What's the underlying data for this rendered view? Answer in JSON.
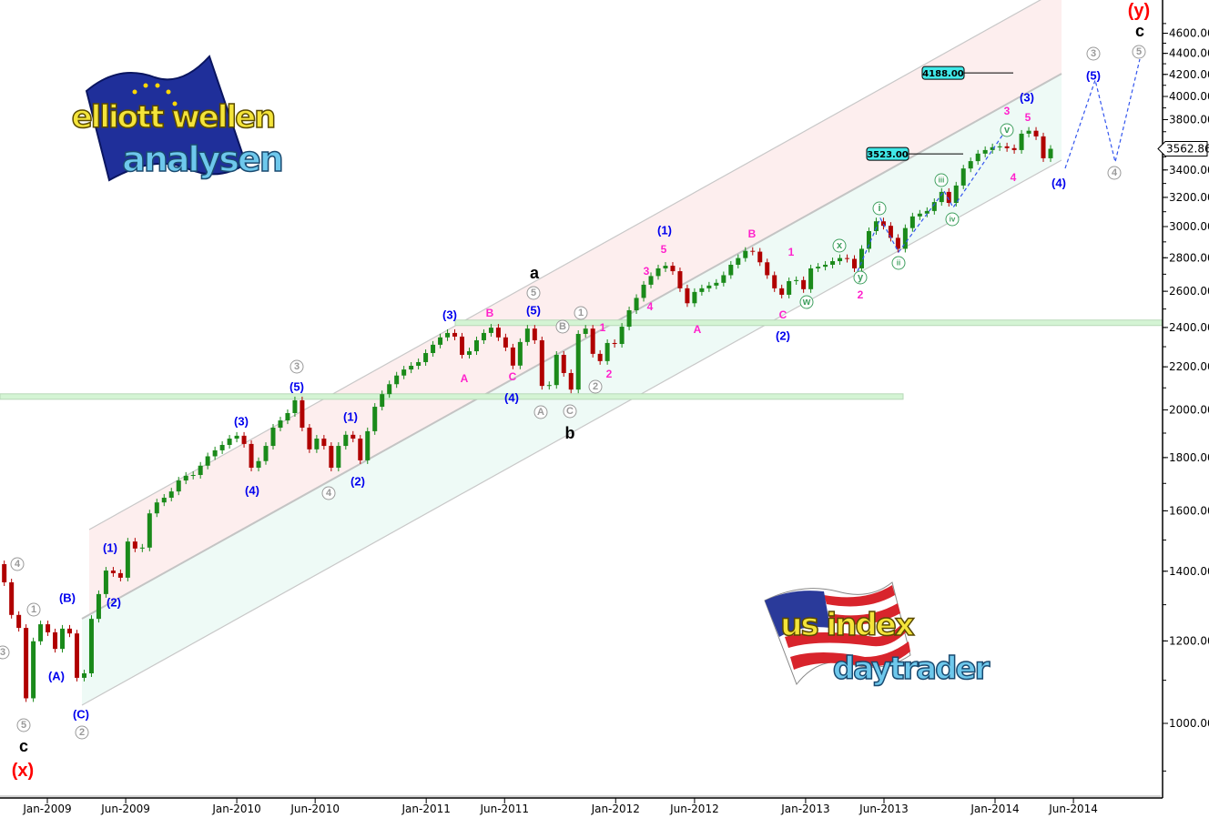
{
  "chart_data": {
    "type": "candlestick",
    "title": "",
    "y_scale": "log",
    "ylim": [
      850,
      4800
    ],
    "y_ticks": [
      "1000.00",
      "1200.00",
      "1400.00",
      "1600.00",
      "1800.00",
      "2000.00",
      "2200.00",
      "2400.00",
      "2600.00",
      "2800.00",
      "3000.00",
      "3200.00",
      "3400.00",
      "3800.00",
      "4000.00",
      "4200.00",
      "4400.00",
      "4600.00"
    ],
    "x_ticks": [
      {
        "label": "Jan-2009",
        "date": "2009-01-01"
      },
      {
        "label": "Jun-2009",
        "date": "2009-06-01"
      },
      {
        "label": "Jan-2010",
        "date": "2010-01-01"
      },
      {
        "label": "Jun-2010",
        "date": "2010-06-01"
      },
      {
        "label": "Jan-2011",
        "date": "2011-01-01"
      },
      {
        "label": "Jun-2011",
        "date": "2011-06-01"
      },
      {
        "label": "Jan-2012",
        "date": "2012-01-01"
      },
      {
        "label": "Jun-2012",
        "date": "2012-06-01"
      },
      {
        "label": "Jan-2013",
        "date": "2013-01-01"
      },
      {
        "label": "Jun-2013",
        "date": "2013-06-01"
      },
      {
        "label": "Jan-2014",
        "date": "2014-01-01"
      },
      {
        "label": "Jun-2014",
        "date": "2014-06-01"
      }
    ],
    "candle_interval": "2 weeks",
    "first_candle_date": "2008-10-10",
    "first_open": 1422,
    "closes": [
      1366,
      1271,
      1235,
      1057,
      1199,
      1245,
      1223,
      1179,
      1233,
      1220,
      1106,
      1117,
      1260,
      1331,
      1402,
      1394,
      1380,
      1495,
      1472,
      1475,
      1591,
      1630,
      1647,
      1670,
      1711,
      1729,
      1732,
      1768,
      1805,
      1829,
      1851,
      1877,
      1889,
      1855,
      1760,
      1786,
      1847,
      1923,
      1954,
      1986,
      2043,
      1923,
      1833,
      1877,
      1847,
      1760,
      1847,
      1893,
      1877,
      1789,
      1908,
      2014,
      2071,
      2117,
      2158,
      2187,
      2205,
      2223,
      2268,
      2310,
      2348,
      2371,
      2352,
      2259,
      2277,
      2333,
      2371,
      2399,
      2348,
      2296,
      2206,
      2324,
      2394,
      2333,
      2109,
      2113,
      2259,
      2170,
      2092,
      2366,
      2394,
      2264,
      2228,
      2319,
      2314,
      2404,
      2493,
      2562,
      2638,
      2689,
      2735,
      2751,
      2718,
      2617,
      2532,
      2596,
      2617,
      2633,
      2649,
      2694,
      2757,
      2798,
      2843,
      2838,
      2772,
      2694,
      2617,
      2580,
      2659,
      2665,
      2612,
      2735,
      2745,
      2757,
      2779,
      2798,
      2793,
      2735,
      2856,
      2970,
      3035,
      3005,
      2926,
      2856,
      2990,
      3068,
      3087,
      3105,
      3167,
      3239,
      3161,
      3285,
      3411,
      3467,
      3525,
      3553,
      3575,
      3582,
      3568,
      3553,
      3684,
      3708,
      3662,
      3489,
      3562.86
    ],
    "last_price": "3562.86",
    "price_levels": [
      {
        "label": "4188.00",
        "value": 4188
      },
      {
        "label": "3523.00",
        "value": 3523
      }
    ],
    "horizontal_support_levels": [
      2060,
      2425
    ],
    "colors": {
      "up": "#1a8a1a",
      "down": "#b00000",
      "wave_blue": "#0000ee",
      "wave_magenta": "#ff22cc",
      "wave_gray": "#999999",
      "wave_green": "#40a060",
      "degree_red": "#ff0000",
      "channel_upper_fill": "#fdeeee",
      "channel_lower_fill": "#eefaf6",
      "level_box": "#40e8e8"
    },
    "annotations": [
      {
        "text": "4",
        "style": "circ"
      },
      {
        "text": "3",
        "style": "circ"
      },
      {
        "text": "1",
        "style": "circ"
      },
      {
        "text": "(B)",
        "style": "blue"
      },
      {
        "text": "(A)",
        "style": "blue"
      },
      {
        "text": "5",
        "style": "circ"
      },
      {
        "text": "c",
        "style": "black"
      },
      {
        "text": "(x)",
        "style": "red"
      },
      {
        "text": "(C)",
        "style": "blue"
      },
      {
        "text": "2",
        "style": "circ"
      },
      {
        "text": "(1)",
        "style": "blue"
      },
      {
        "text": "(2)",
        "style": "blue"
      },
      {
        "text": "(3)",
        "style": "blue"
      },
      {
        "text": "(4)",
        "style": "blue"
      },
      {
        "text": "3",
        "style": "circ"
      },
      {
        "text": "(5)",
        "style": "blue"
      },
      {
        "text": "4",
        "style": "circ"
      },
      {
        "text": "(1)",
        "style": "blue"
      },
      {
        "text": "(2)",
        "style": "blue"
      },
      {
        "text": "(3)",
        "style": "blue"
      },
      {
        "text": "A",
        "style": "mag"
      },
      {
        "text": "B",
        "style": "mag"
      },
      {
        "text": "C",
        "style": "mag"
      },
      {
        "text": "(4)",
        "style": "blue"
      },
      {
        "text": "a",
        "style": "black"
      },
      {
        "text": "5",
        "style": "circ"
      },
      {
        "text": "(5)",
        "style": "blue"
      },
      {
        "text": "B",
        "style": "circ"
      },
      {
        "text": "1",
        "style": "circ"
      },
      {
        "text": "1",
        "style": "mag"
      },
      {
        "text": "2",
        "style": "mag"
      },
      {
        "text": "2",
        "style": "circ"
      },
      {
        "text": "A",
        "style": "circ"
      },
      {
        "text": "C",
        "style": "circ"
      },
      {
        "text": "b",
        "style": "black"
      },
      {
        "text": "(1)",
        "style": "blue"
      },
      {
        "text": "5",
        "style": "mag"
      },
      {
        "text": "3",
        "style": "mag"
      },
      {
        "text": "4",
        "style": "mag"
      },
      {
        "text": "A",
        "style": "mag"
      },
      {
        "text": "B",
        "style": "mag"
      },
      {
        "text": "1",
        "style": "mag"
      },
      {
        "text": "w",
        "style": "gcirc"
      },
      {
        "text": "C",
        "style": "mag"
      },
      {
        "text": "(2)",
        "style": "blue"
      },
      {
        "text": "x",
        "style": "gcirc"
      },
      {
        "text": "y",
        "style": "gcirc"
      },
      {
        "text": "2",
        "style": "mag"
      },
      {
        "text": "i",
        "style": "gcirc"
      },
      {
        "text": "ii",
        "style": "gcirc"
      },
      {
        "text": "iii",
        "style": "gcirc"
      },
      {
        "text": "iv",
        "style": "gcirc"
      },
      {
        "text": "v",
        "style": "gcirc"
      },
      {
        "text": "3",
        "style": "mag"
      },
      {
        "text": "5",
        "style": "mag"
      },
      {
        "text": "(3)",
        "style": "blue"
      },
      {
        "text": "4",
        "style": "mag"
      },
      {
        "text": "(4)",
        "style": "blue"
      },
      {
        "text": "3",
        "style": "circ"
      },
      {
        "text": "(5)",
        "style": "blue"
      },
      {
        "text": "4",
        "style": "circ"
      },
      {
        "text": "5",
        "style": "circ"
      },
      {
        "text": "c",
        "style": "black"
      },
      {
        "text": "(y)",
        "style": "red"
      }
    ]
  },
  "logos": {
    "elliott": {
      "line1": "elliott wellen",
      "line2": "analysen"
    },
    "usindex": {
      "line1": "us index",
      "line2": "daytrader"
    }
  }
}
